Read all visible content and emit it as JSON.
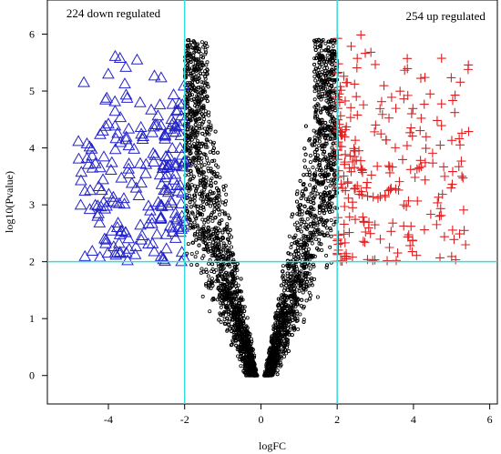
{
  "chart_data": {
    "type": "scatter",
    "title": "",
    "xlabel": "logFC",
    "ylabel": "log10(Pvalue)",
    "xlim": [
      -5.6,
      6.2
    ],
    "ylim": [
      -0.5,
      6.6
    ],
    "xticks": [
      -4,
      -2,
      0,
      2,
      4,
      6
    ],
    "yticks": [
      0,
      1,
      2,
      3,
      4,
      5,
      6
    ],
    "thresholds": {
      "logFC": [
        -2,
        2
      ],
      "log10_pvalue": 2
    },
    "threshold_color": "#33dddd",
    "annotations": [
      {
        "name": "down_label",
        "text": "224 down regulated",
        "x": -5.1,
        "y": 6.3
      },
      {
        "name": "up_label",
        "text": "254 up regulated",
        "x": 3.8,
        "y": 6.25
      }
    ],
    "series": [
      {
        "name": "down",
        "count": 224,
        "color": "#2222cc",
        "marker": "triangle",
        "x_range": [
          -4.8,
          -2.0
        ],
        "y_range": [
          2.0,
          5.8
        ]
      },
      {
        "name": "up",
        "count": 254,
        "color": "#e02020",
        "marker": "plus",
        "x_range": [
          2.0,
          5.6
        ],
        "y_range": [
          2.0,
          6.3
        ]
      },
      {
        "name": "not_significant",
        "color": "#000000",
        "marker": "circle",
        "x_range": [
          -4.5,
          4.3
        ],
        "y_range": [
          0,
          6.0
        ]
      }
    ],
    "grid": false,
    "legend": "none"
  }
}
